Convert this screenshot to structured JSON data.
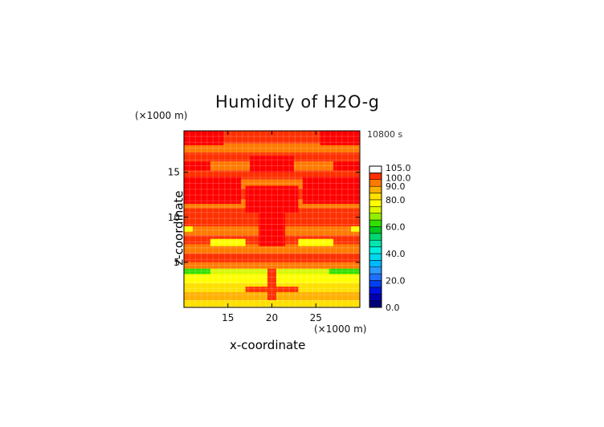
{
  "chart_data": {
    "type": "heatmap",
    "title": "Humidity of H2O-g",
    "time_label": "10800 s",
    "xlabel": "x-coordinate",
    "ylabel": "z-coordinate",
    "x_unit": "(×1000 m)",
    "y_unit": "(×1000 m)",
    "xlim": [
      10,
      30
    ],
    "ylim": [
      0,
      19.6
    ],
    "x_ticks": [
      "15",
      "20",
      "25"
    ],
    "x_tick_values": [
      15,
      20,
      25
    ],
    "y_ticks": [
      "5",
      "10",
      "15"
    ],
    "y_tick_values": [
      5,
      10,
      15
    ],
    "colorbar": {
      "labels": [
        "105.0",
        "100.0",
        "90.0",
        "80.0",
        "60.0",
        "40.0",
        "20.0",
        "0.0"
      ],
      "label_values": [
        105,
        100,
        90,
        80,
        60,
        40,
        20,
        0
      ],
      "levels": [
        0,
        5,
        10,
        15,
        20,
        25,
        30,
        35,
        40,
        45,
        50,
        55,
        60,
        65,
        70,
        75,
        80,
        85,
        90,
        95,
        100,
        105
      ],
      "colors": [
        "#00007a",
        "#0000b0",
        "#0010e0",
        "#0040f0",
        "#2070ff",
        "#2a9aff",
        "#00b8ff",
        "#00d8f0",
        "#00f0e0",
        "#00e8b0",
        "#00d870",
        "#00c820",
        "#30e000",
        "#90f000",
        "#d8f800",
        "#ffff00",
        "#ffe000",
        "#ffb000",
        "#ff7a00",
        "#ff3000",
        "#ff0000",
        "#ffb8c8"
      ]
    },
    "bands": [
      {
        "z": [
          0,
          0.8
        ],
        "value": 82
      },
      {
        "z": [
          0.8,
          1.7
        ],
        "value": 88
      },
      {
        "z": [
          1.7,
          2.7
        ],
        "value": 82
      },
      {
        "z": [
          2.7,
          3.7
        ],
        "value": 78
      },
      {
        "z": [
          3.7,
          4.3
        ],
        "value": 70
      },
      {
        "z": [
          4.3,
          5.0
        ],
        "value": 92
      },
      {
        "z": [
          5.0,
          6.0
        ],
        "value": 96
      },
      {
        "z": [
          6.0,
          7.0
        ],
        "value": 90
      },
      {
        "z": [
          7.0,
          8.0
        ],
        "value": 96
      },
      {
        "z": [
          8.0,
          9.0
        ],
        "value": 90
      },
      {
        "z": [
          9.0,
          11.0
        ],
        "value": 97
      },
      {
        "z": [
          11.0,
          12.0
        ],
        "value": 92
      },
      {
        "z": [
          12.0,
          13.2
        ],
        "value": 97
      },
      {
        "z": [
          13.2,
          14.2
        ],
        "value": 92
      },
      {
        "z": [
          14.2,
          15.2
        ],
        "value": 98
      },
      {
        "z": [
          15.2,
          16.2
        ],
        "value": 92
      },
      {
        "z": [
          16.2,
          17.2
        ],
        "value": 98
      },
      {
        "z": [
          17.2,
          18.2
        ],
        "value": 92
      },
      {
        "z": [
          18.2,
          19.6
        ],
        "value": 97
      }
    ],
    "patches": [
      {
        "x": [
          10,
          16.5
        ],
        "z": [
          11.5,
          14.5
        ],
        "value": 103
      },
      {
        "x": [
          23.5,
          30
        ],
        "z": [
          11.5,
          14.5
        ],
        "value": 103
      },
      {
        "x": [
          17,
          23
        ],
        "z": [
          10.5,
          13.5
        ],
        "value": 103
      },
      {
        "x": [
          18.5,
          21.5
        ],
        "z": [
          6.8,
          10.5
        ],
        "value": 103
      },
      {
        "x": [
          17.5,
          22.5
        ],
        "z": [
          15.0,
          16.8
        ],
        "value": 103
      },
      {
        "x": [
          10,
          13
        ],
        "z": [
          15.2,
          16.2
        ],
        "value": 103
      },
      {
        "x": [
          27,
          30
        ],
        "z": [
          15.2,
          16.2
        ],
        "value": 103
      },
      {
        "x": [
          10,
          14.5
        ],
        "z": [
          18.0,
          19.6
        ],
        "value": 103
      },
      {
        "x": [
          25.5,
          30
        ],
        "z": [
          18.0,
          19.6
        ],
        "value": 103
      },
      {
        "x": [
          10,
          13
        ],
        "z": [
          3.7,
          4.3
        ],
        "value": 62
      },
      {
        "x": [
          26.5,
          30
        ],
        "z": [
          3.7,
          4.3
        ],
        "value": 62
      },
      {
        "x": [
          10,
          18
        ],
        "z": [
          2.7,
          3.7
        ],
        "value": 77
      },
      {
        "x": [
          22,
          30
        ],
        "z": [
          2.7,
          3.7
        ],
        "value": 77
      },
      {
        "x": [
          19.5,
          20.5
        ],
        "z": [
          0.8,
          4.3
        ],
        "value": 97
      },
      {
        "x": [
          13,
          17
        ],
        "z": [
          6.8,
          7.6
        ],
        "value": 77
      },
      {
        "x": [
          23,
          27
        ],
        "z": [
          6.8,
          7.6
        ],
        "value": 77
      },
      {
        "x": [
          10,
          11
        ],
        "z": [
          8.4,
          9.0
        ],
        "value": 77
      },
      {
        "x": [
          29,
          30
        ],
        "z": [
          8.4,
          9.0
        ],
        "value": 77
      },
      {
        "x": [
          17,
          23
        ],
        "z": [
          1.7,
          2.3
        ],
        "value": 97
      }
    ]
  }
}
